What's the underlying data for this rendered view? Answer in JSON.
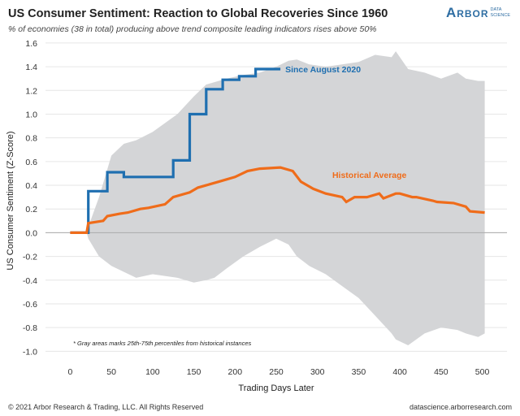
{
  "header": {
    "title": "US Consumer Sentiment: Reaction to Global Recoveries Since 1960",
    "subtitle": "% of economies (38 in total) producing above trend composite leading indicators rises above 50%"
  },
  "logo": {
    "main": "Arbor",
    "sub1": "DATA",
    "sub2": "SCIENCE"
  },
  "footer": {
    "copyright": "© 2021 Arbor Research & Trading, LLC. All Rights Reserved",
    "website": "datascience.arborresearch.com"
  },
  "colors": {
    "recent": "#1f6fb0",
    "average": "#ef6c1a",
    "band": "#d4d5d7",
    "zero": "#aaaaaa"
  },
  "chart_data": {
    "type": "line",
    "title": "US Consumer Sentiment: Reaction to Global Recoveries Since 1960",
    "xlabel": "Trading Days Later",
    "ylabel": "US Consumer Sentiment (Z-Score)",
    "xlim": [
      -30,
      530
    ],
    "ylim": [
      -1.08,
      1.62
    ],
    "xticks": [
      0,
      50,
      100,
      150,
      200,
      250,
      300,
      350,
      400,
      450,
      500
    ],
    "yticks": [
      -1.0,
      -0.8,
      -0.6,
      -0.4,
      -0.2,
      0.0,
      0.2,
      0.4,
      0.6,
      0.8,
      1.0,
      1.2,
      1.4,
      1.6
    ],
    "annotation": "* Gray areas marks 25th-75th percentiles from historical instances",
    "band": {
      "name": "25th-75th percentile range",
      "x": [
        0,
        20,
        22,
        35,
        50,
        65,
        80,
        100,
        130,
        150,
        165,
        175,
        190,
        210,
        230,
        250,
        265,
        275,
        290,
        310,
        330,
        350,
        370,
        390,
        395,
        410,
        430,
        450,
        470,
        480,
        495,
        503
      ],
      "upper": [
        0,
        0,
        0.05,
        0.3,
        0.65,
        0.75,
        0.78,
        0.85,
        1.0,
        1.15,
        1.25,
        1.27,
        1.3,
        1.33,
        1.35,
        1.4,
        1.45,
        1.46,
        1.42,
        1.4,
        1.42,
        1.44,
        1.5,
        1.48,
        1.53,
        1.38,
        1.35,
        1.3,
        1.35,
        1.3,
        1.28,
        1.28
      ],
      "lower": [
        0,
        0,
        -0.05,
        -0.2,
        -0.28,
        -0.33,
        -0.38,
        -0.35,
        -0.38,
        -0.42,
        -0.4,
        -0.38,
        -0.3,
        -0.2,
        -0.12,
        -0.05,
        -0.1,
        -0.2,
        -0.28,
        -0.35,
        -0.45,
        -0.55,
        -0.7,
        -0.85,
        -0.9,
        -0.95,
        -0.85,
        -0.8,
        -0.82,
        -0.85,
        -0.88,
        -0.85
      ]
    },
    "series": [
      {
        "name": "Since August 2020",
        "step": true,
        "x": [
          0,
          20,
          22,
          45,
          65,
          100,
          125,
          145,
          165,
          185,
          205,
          225,
          255
        ],
        "y": [
          0,
          0,
          0.35,
          0.51,
          0.47,
          0.47,
          0.61,
          1.0,
          1.21,
          1.29,
          1.32,
          1.38,
          1.38
        ]
      },
      {
        "name": "Historical Average",
        "step": false,
        "x": [
          0,
          20,
          22,
          40,
          45,
          60,
          70,
          85,
          95,
          115,
          125,
          145,
          155,
          170,
          180,
          200,
          215,
          230,
          255,
          270,
          280,
          295,
          310,
          330,
          335,
          345,
          360,
          375,
          380,
          395,
          400,
          415,
          420,
          440,
          445,
          465,
          480,
          485,
          503
        ],
        "y": [
          0,
          0,
          0.08,
          0.1,
          0.14,
          0.16,
          0.17,
          0.2,
          0.21,
          0.24,
          0.3,
          0.34,
          0.38,
          0.41,
          0.43,
          0.47,
          0.52,
          0.54,
          0.55,
          0.52,
          0.43,
          0.37,
          0.33,
          0.3,
          0.26,
          0.3,
          0.3,
          0.33,
          0.29,
          0.33,
          0.33,
          0.3,
          0.3,
          0.27,
          0.26,
          0.25,
          0.22,
          0.18,
          0.17
        ]
      }
    ]
  }
}
